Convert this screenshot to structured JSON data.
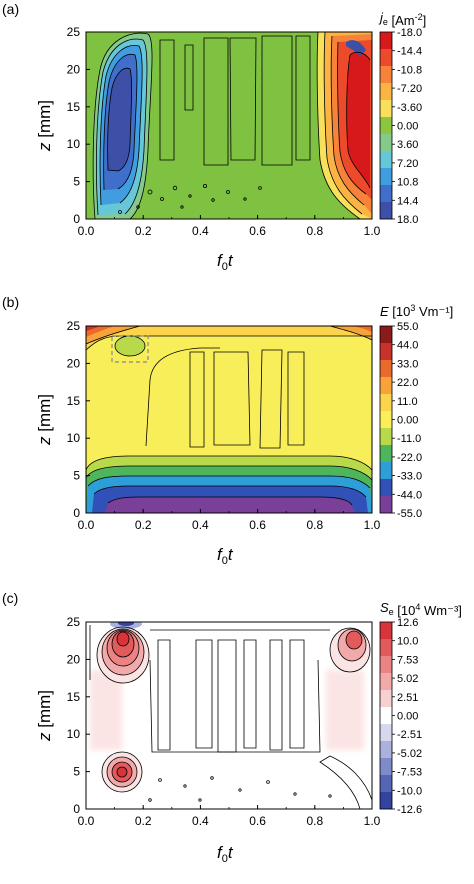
{
  "chart_data": [
    {
      "panel_label": "(a)",
      "type": "heatmap",
      "x_ticks": [
        "0.0",
        "0.2",
        "0.4",
        "0.6",
        "0.8",
        "1.0"
      ],
      "y_ticks": [
        "0",
        "5",
        "10",
        "15",
        "20",
        "25"
      ],
      "xlim": [
        0,
        1
      ],
      "ylim": [
        0,
        25
      ],
      "xlabel_main": "f",
      "xlabel_sub": "0",
      "xlabel_var": "t",
      "ylabel_var": "z",
      "ylabel_unit": "[mm]",
      "cb_title": "j",
      "cb_title_sub": "e",
      "cb_title_unit": "[Am",
      "cb_title_sup": "-2",
      "cb_title_end": "]",
      "cb_ticks": [
        "-18.0",
        "-14.4",
        "-10.8",
        "-7.20",
        "-3.60",
        "0.00",
        "3.60",
        "7.20",
        "10.8",
        "14.4",
        "18.0"
      ],
      "cb_colors": [
        "#d7191c",
        "#ec4a2a",
        "#f7833a",
        "#fbb444",
        "#f8e05a",
        "#8cc63e",
        "#86c98c",
        "#66c7d9",
        "#3f9de0",
        "#3f6fca",
        "#3d4fa6"
      ],
      "background_color": "#7fc241"
    },
    {
      "panel_label": "(b)",
      "type": "heatmap",
      "x_ticks": [
        "0.0",
        "0.2",
        "0.4",
        "0.6",
        "0.8",
        "1.0"
      ],
      "y_ticks": [
        "0",
        "5",
        "10",
        "15",
        "20",
        "25"
      ],
      "xlim": [
        0,
        1
      ],
      "ylim": [
        0,
        25
      ],
      "xlabel_main": "f",
      "xlabel_sub": "0",
      "xlabel_var": "t",
      "ylabel_var": "z",
      "ylabel_unit": "[mm]",
      "cb_title": "E",
      "cb_title_sub": "",
      "cb_title_unit": "[10",
      "cb_title_sup": "3",
      "cb_title_end": " Vm⁻¹]",
      "cb_ticks": [
        "55.0",
        "44.0",
        "33.0",
        "22.0",
        "11.0",
        "0.00",
        "-11.0",
        "-22.0",
        "-33.0",
        "-44.0",
        "-55.0"
      ],
      "cb_colors": [
        "#8b1a1a",
        "#c8322a",
        "#ea6a2c",
        "#f7a33a",
        "#fbd44c",
        "#fbee58",
        "#b8d94a",
        "#4fb55a",
        "#2e9ed8",
        "#3150b8",
        "#7a3f98"
      ],
      "background_color": "#f8ee5a"
    },
    {
      "panel_label": "(c)",
      "type": "heatmap",
      "x_ticks": [
        "0.0",
        "0.2",
        "0.4",
        "0.6",
        "0.8",
        "1.0"
      ],
      "y_ticks": [
        "0",
        "5",
        "10",
        "15",
        "20",
        "25"
      ],
      "xlim": [
        0,
        1
      ],
      "ylim": [
        0,
        25
      ],
      "xlabel_main": "f",
      "xlabel_sub": "0",
      "xlabel_var": "t",
      "ylabel_var": "z",
      "ylabel_unit": "[mm]",
      "cb_title": "S",
      "cb_title_sub": "e",
      "cb_title_unit": "[10",
      "cb_title_sup": "4",
      "cb_title_end": " Wm⁻³]",
      "cb_ticks": [
        "12.6",
        "10.0",
        "7.53",
        "5.02",
        "2.51",
        "0.00",
        "-2.51",
        "-5.02",
        "-7.53",
        "-10.0",
        "-12.6"
      ],
      "cb_colors": [
        "#d9343a",
        "#e35a5c",
        "#eb8283",
        "#f2a9aa",
        "#f7d0d0",
        "#ffffff",
        "#d6d8ee",
        "#aab1dc",
        "#7f8bc9",
        "#5565b4",
        "#3344a0"
      ],
      "background_color": "#ffffff"
    }
  ]
}
